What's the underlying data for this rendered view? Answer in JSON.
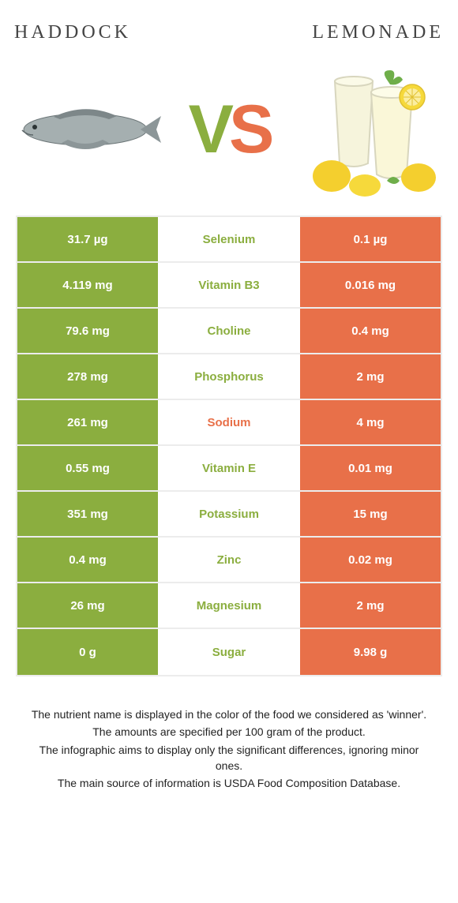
{
  "header": {
    "left_title": "Haddock",
    "right_title": "Lemonade"
  },
  "vs": {
    "v": "V",
    "s": "S"
  },
  "colors": {
    "left_winner": "#8bae3f",
    "right_winner": "#e87049",
    "table_border": "#ececec",
    "background": "#ffffff",
    "text": "#444444"
  },
  "table": {
    "rows": [
      {
        "left": "31.7 µg",
        "name": "Selenium",
        "right": "0.1 µg",
        "winner": "left"
      },
      {
        "left": "4.119 mg",
        "name": "Vitamin B3",
        "right": "0.016 mg",
        "winner": "left"
      },
      {
        "left": "79.6 mg",
        "name": "Choline",
        "right": "0.4 mg",
        "winner": "left"
      },
      {
        "left": "278 mg",
        "name": "Phosphorus",
        "right": "2 mg",
        "winner": "left"
      },
      {
        "left": "261 mg",
        "name": "Sodium",
        "right": "4 mg",
        "winner": "right"
      },
      {
        "left": "0.55 mg",
        "name": "Vitamin E",
        "right": "0.01 mg",
        "winner": "left"
      },
      {
        "left": "351 mg",
        "name": "Potassium",
        "right": "15 mg",
        "winner": "left"
      },
      {
        "left": "0.4 mg",
        "name": "Zinc",
        "right": "0.02 mg",
        "winner": "left"
      },
      {
        "left": "26 mg",
        "name": "Magnesium",
        "right": "2 mg",
        "winner": "left"
      },
      {
        "left": "0 g",
        "name": "Sugar",
        "right": "9.98 g",
        "winner": "left"
      }
    ]
  },
  "footer": {
    "line1": "The nutrient name is displayed in the color of the food we considered as 'winner'.",
    "line2": "The amounts are specified per 100 gram of the product.",
    "line3": "The infographic aims to display only the significant differences, ignoring minor ones.",
    "line4": "The main source of information is USDA Food Composition Database."
  }
}
